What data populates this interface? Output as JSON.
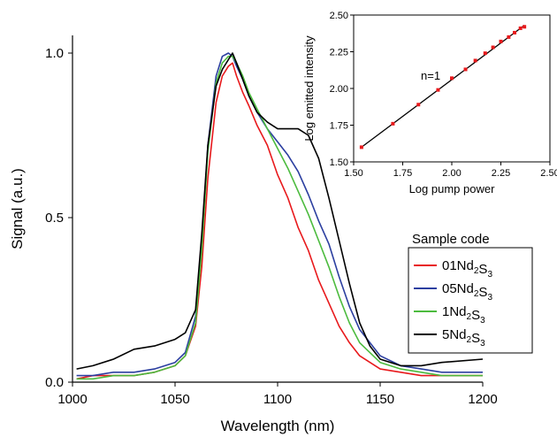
{
  "chart_data": [
    {
      "type": "line",
      "xlabel": "Wavelength (nm)",
      "ylabel": "Signal (a.u.)",
      "xlim": [
        1000,
        1200
      ],
      "ylim": [
        0.0,
        1.0
      ],
      "xticks": [
        "1000",
        "1050",
        "1100",
        "1150",
        "1200"
      ],
      "yticks": [
        "0.0",
        "0.5",
        "1.0"
      ],
      "legend": {
        "title": "Sample code",
        "placement": "right",
        "entries": [
          {
            "main": "01Nd",
            "sub1": "2",
            "mid": "S",
            "sub2": "3",
            "color": "#e8191c"
          },
          {
            "main": "05Nd",
            "sub1": "2",
            "mid": "S",
            "sub2": "3",
            "color": "#2c3fa0"
          },
          {
            "main": "1Nd",
            "sub1": "2",
            "mid": "S",
            "sub2": "3",
            "color": "#4cbb3e"
          },
          {
            "main": "5Nd",
            "sub1": "2",
            "mid": "S",
            "sub2": "3",
            "color": "#000000"
          }
        ]
      },
      "series": [
        {
          "color": "#e8191c",
          "x": [
            1002,
            1010,
            1020,
            1030,
            1040,
            1050,
            1055,
            1060,
            1063,
            1066,
            1070,
            1073,
            1076,
            1078,
            1080,
            1083,
            1086,
            1090,
            1095,
            1100,
            1105,
            1110,
            1115,
            1120,
            1125,
            1130,
            1135,
            1140,
            1150,
            1160,
            1170,
            1180,
            1200
          ],
          "y": [
            0.01,
            0.02,
            0.02,
            0.02,
            0.03,
            0.05,
            0.08,
            0.17,
            0.35,
            0.62,
            0.85,
            0.93,
            0.96,
            0.97,
            0.93,
            0.88,
            0.84,
            0.78,
            0.72,
            0.63,
            0.56,
            0.47,
            0.4,
            0.31,
            0.24,
            0.17,
            0.12,
            0.08,
            0.04,
            0.03,
            0.02,
            0.02,
            0.02
          ]
        },
        {
          "color": "#2c3fa0",
          "x": [
            1002,
            1010,
            1020,
            1030,
            1040,
            1050,
            1055,
            1060,
            1063,
            1066,
            1070,
            1073,
            1076,
            1078,
            1080,
            1083,
            1086,
            1090,
            1095,
            1100,
            1105,
            1110,
            1115,
            1120,
            1125,
            1130,
            1135,
            1140,
            1150,
            1160,
            1170,
            1180,
            1200
          ],
          "y": [
            0.02,
            0.02,
            0.03,
            0.03,
            0.04,
            0.06,
            0.09,
            0.2,
            0.42,
            0.72,
            0.93,
            0.99,
            1.0,
            0.99,
            0.96,
            0.92,
            0.87,
            0.82,
            0.77,
            0.73,
            0.69,
            0.64,
            0.57,
            0.49,
            0.42,
            0.32,
            0.23,
            0.16,
            0.08,
            0.05,
            0.04,
            0.03,
            0.03
          ]
        },
        {
          "color": "#4cbb3e",
          "x": [
            1002,
            1010,
            1020,
            1030,
            1040,
            1050,
            1055,
            1060,
            1063,
            1066,
            1070,
            1073,
            1076,
            1078,
            1080,
            1083,
            1086,
            1090,
            1095,
            1100,
            1105,
            1110,
            1115,
            1120,
            1125,
            1130,
            1135,
            1140,
            1150,
            1160,
            1170,
            1180,
            1200
          ],
          "y": [
            0.01,
            0.01,
            0.02,
            0.02,
            0.03,
            0.05,
            0.08,
            0.18,
            0.4,
            0.7,
            0.91,
            0.97,
            0.99,
            0.99,
            0.97,
            0.93,
            0.88,
            0.83,
            0.77,
            0.71,
            0.65,
            0.58,
            0.51,
            0.43,
            0.35,
            0.26,
            0.18,
            0.12,
            0.06,
            0.04,
            0.03,
            0.02,
            0.02
          ]
        },
        {
          "color": "#000000",
          "x": [
            1002,
            1010,
            1020,
            1030,
            1040,
            1050,
            1055,
            1060,
            1063,
            1066,
            1070,
            1073,
            1076,
            1078,
            1080,
            1083,
            1086,
            1090,
            1095,
            1100,
            1105,
            1110,
            1115,
            1120,
            1125,
            1130,
            1135,
            1140,
            1145,
            1150,
            1160,
            1170,
            1180,
            1200
          ],
          "y": [
            0.04,
            0.05,
            0.07,
            0.1,
            0.11,
            0.13,
            0.15,
            0.22,
            0.45,
            0.72,
            0.9,
            0.95,
            0.98,
            1.0,
            0.97,
            0.92,
            0.87,
            0.82,
            0.79,
            0.77,
            0.77,
            0.77,
            0.75,
            0.68,
            0.56,
            0.43,
            0.3,
            0.18,
            0.11,
            0.07,
            0.05,
            0.05,
            0.06,
            0.07
          ]
        }
      ]
    },
    {
      "type": "scatter",
      "xlabel": "Log pump power",
      "ylabel": "Log emitted intensity",
      "xlim": [
        1.5,
        2.5
      ],
      "ylim": [
        1.5,
        2.5
      ],
      "xticks": [
        "1.50",
        "1.75",
        "2.00",
        "2.25",
        "2.50"
      ],
      "yticks": [
        "1.50",
        "1.75",
        "2.00",
        "2.25",
        "2.50"
      ],
      "annotation": "n=1",
      "points": {
        "color": "#e8191c",
        "x": [
          1.54,
          1.7,
          1.83,
          1.93,
          2.0,
          2.07,
          2.12,
          2.17,
          2.21,
          2.25,
          2.29,
          2.32,
          2.35,
          2.37
        ],
        "y": [
          1.6,
          1.76,
          1.89,
          1.99,
          2.07,
          2.13,
          2.19,
          2.24,
          2.28,
          2.32,
          2.35,
          2.38,
          2.41,
          2.42
        ]
      },
      "fit": {
        "x": [
          1.54,
          2.37
        ],
        "y": [
          1.6,
          2.43
        ],
        "color": "#000000"
      }
    }
  ]
}
